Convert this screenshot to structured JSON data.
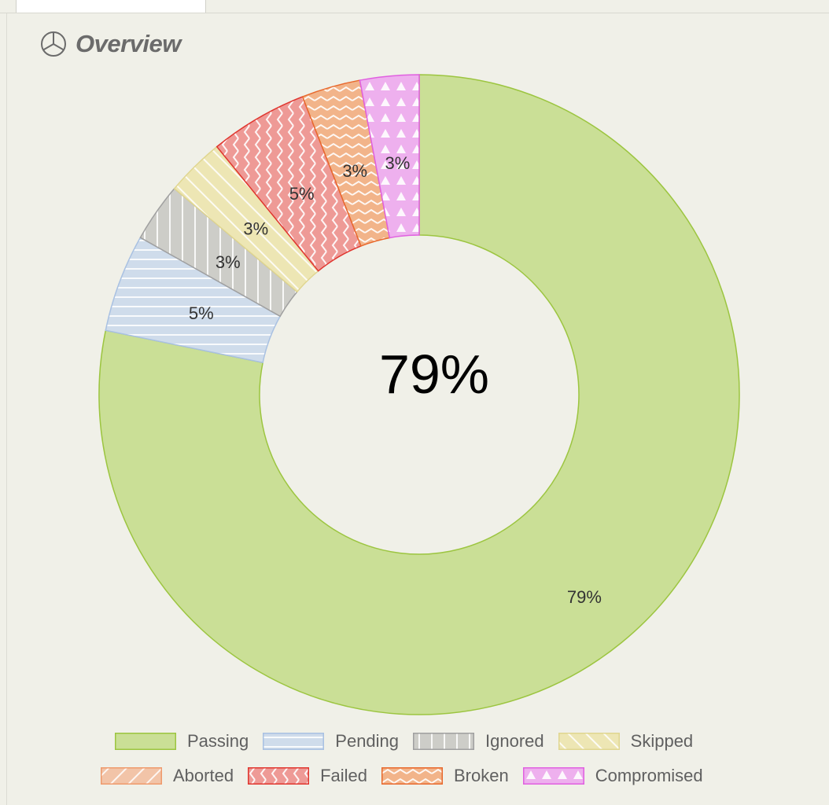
{
  "header": {
    "title": "Overview",
    "icon": "pie-chart-icon"
  },
  "chart_data": {
    "type": "pie",
    "donut": true,
    "center_label": "79%",
    "slices": [
      {
        "name": "Passing",
        "value": 79,
        "label": "79%",
        "fill": "#cadf96",
        "stroke": "#9cc540",
        "pattern": "none"
      },
      {
        "name": "Pending",
        "value": 5,
        "label": "5%",
        "fill": "#cfdceb",
        "stroke": "#a9c1e2",
        "pattern": "horizontal-lines"
      },
      {
        "name": "Ignored",
        "value": 3,
        "label": "3%",
        "fill": "#cdcdc8",
        "stroke": "#a0a0a0",
        "pattern": "vertical-lines"
      },
      {
        "name": "Skipped",
        "value": 3,
        "label": "3%",
        "fill": "#ede6b4",
        "stroke": "#e0d690",
        "pattern": "diagonal-lines"
      },
      {
        "name": "Failed",
        "value": 5,
        "label": "5%",
        "fill": "#ee9a96",
        "stroke": "#e0352e",
        "pattern": "zigzag-vertical"
      },
      {
        "name": "Broken",
        "value": 3,
        "label": "3%",
        "fill": "#f2b48a",
        "stroke": "#e8692d",
        "pattern": "zigzag-horizontal"
      },
      {
        "name": "Compromised",
        "value": 3,
        "label": "3%",
        "fill": "#eeb0ee",
        "stroke": "#e060e0",
        "pattern": "triangles"
      }
    ],
    "legend": [
      {
        "name": "Passing",
        "pattern": "none",
        "fill": "#cadf96",
        "stroke": "#9cc540"
      },
      {
        "name": "Pending",
        "pattern": "horizontal-lines",
        "fill": "#cfdceb",
        "stroke": "#a9c1e2"
      },
      {
        "name": "Ignored",
        "pattern": "vertical-lines",
        "fill": "#cdcdc8",
        "stroke": "#a0a0a0"
      },
      {
        "name": "Skipped",
        "pattern": "diagonal-lines",
        "fill": "#ede6b4",
        "stroke": "#e0d690"
      },
      {
        "name": "Aborted",
        "pattern": "diagonal-lines-rev",
        "fill": "#f2c4a8",
        "stroke": "#ef9a6c"
      },
      {
        "name": "Failed",
        "pattern": "zigzag-vertical",
        "fill": "#ee9a96",
        "stroke": "#e0352e"
      },
      {
        "name": "Broken",
        "pattern": "zigzag-horizontal",
        "fill": "#f2b48a",
        "stroke": "#e8692d"
      },
      {
        "name": "Compromised",
        "pattern": "triangles",
        "fill": "#eeb0ee",
        "stroke": "#e060e0"
      }
    ],
    "legend_placement": "bottom"
  }
}
